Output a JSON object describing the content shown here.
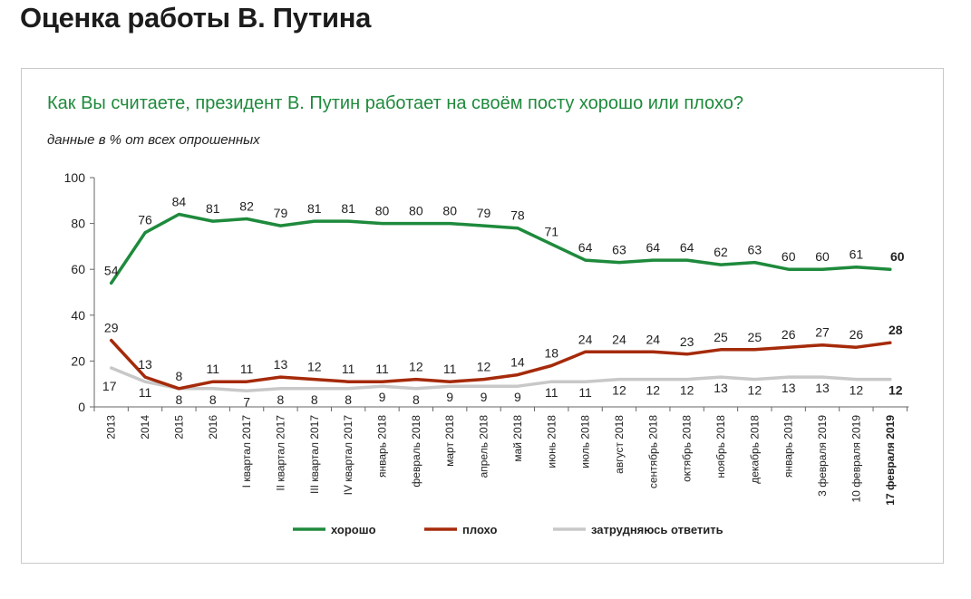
{
  "page": {
    "title": "Оценка работы В. Путина"
  },
  "chart_data": {
    "type": "line",
    "title": "Как Вы считаете, президент В. Путин работает на своём посту хорошо или плохо?",
    "subtitle": "данные в % от всех опрошенных",
    "ylim": [
      0,
      100
    ],
    "yticks": [
      0,
      20,
      40,
      60,
      80,
      100
    ],
    "categories": [
      "2013",
      "2014",
      "2015",
      "2016",
      "I квартал 2017",
      "II квартал 2017",
      "III квартал 2017",
      "IV квартал 2017",
      "январь 2018",
      "февраль 2018",
      "март 2018",
      "апрель 2018",
      "май 2018",
      "июнь 2018",
      "июль 2018",
      "август 2018",
      "сентябрь 2018",
      "октябрь 2018",
      "ноябрь 2018",
      "декабрь 2018",
      "январь 2019",
      "3 февраля 2019",
      "10 февраля 2019",
      "17 февраля 2019"
    ],
    "legend_position": "bottom",
    "grid": false,
    "series": [
      {
        "name": "хорошо",
        "color": "#1e8a3c",
        "values": [
          54,
          76,
          84,
          81,
          82,
          79,
          81,
          81,
          80,
          80,
          80,
          79,
          78,
          71,
          64,
          63,
          64,
          64,
          62,
          63,
          60,
          60,
          61,
          60
        ]
      },
      {
        "name": "плохо",
        "color": "#a52a0a",
        "values": [
          29,
          13,
          8,
          11,
          11,
          13,
          12,
          11,
          11,
          12,
          11,
          12,
          14,
          18,
          24,
          24,
          24,
          23,
          25,
          25,
          26,
          27,
          26,
          28
        ]
      },
      {
        "name": "затрудняюсь ответить",
        "color": "#c8c8c8",
        "values": [
          17,
          11,
          8,
          8,
          7,
          8,
          8,
          8,
          9,
          8,
          9,
          9,
          9,
          11,
          11,
          12,
          12,
          12,
          13,
          12,
          13,
          13,
          12,
          12
        ]
      }
    ]
  }
}
